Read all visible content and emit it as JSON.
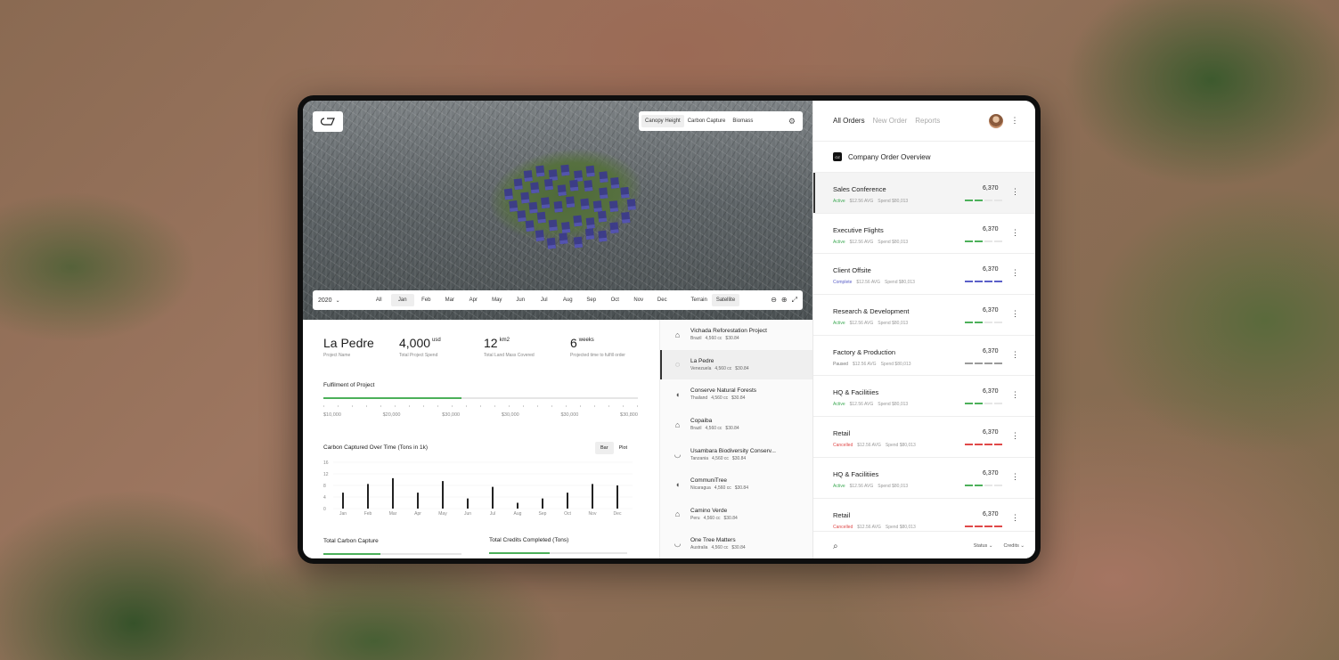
{
  "map": {
    "logo": "OZ",
    "layers": [
      {
        "label": "Canopy Height",
        "active": true
      },
      {
        "label": "Carbon Capture",
        "active": false
      },
      {
        "label": "Biomass",
        "active": false
      }
    ],
    "year": "2020",
    "months": [
      {
        "label": "All",
        "active": false
      },
      {
        "label": "Jan",
        "active": true
      },
      {
        "label": "Feb",
        "active": false
      },
      {
        "label": "Mar",
        "active": false
      },
      {
        "label": "Apr",
        "active": false
      },
      {
        "label": "May",
        "active": false
      },
      {
        "label": "Jun",
        "active": false
      },
      {
        "label": "Jul",
        "active": false
      },
      {
        "label": "Aug",
        "active": false
      },
      {
        "label": "Sep",
        "active": false
      },
      {
        "label": "Oct",
        "active": false
      },
      {
        "label": "Nov",
        "active": false
      },
      {
        "label": "Dec",
        "active": false
      }
    ],
    "views": [
      {
        "label": "Terrain",
        "active": false
      },
      {
        "label": "Satellite",
        "active": true
      }
    ]
  },
  "project": {
    "name": "La Pedre",
    "name_label": "Project Name",
    "spend": "4,000",
    "spend_unit": "usd",
    "spend_label": "Total Project Spend",
    "area": "12",
    "area_unit": "km2",
    "area_label": "Total Land Mass Covered",
    "time": "6",
    "time_unit": "weeks",
    "time_label": "Projected time to fulfill order"
  },
  "fulfillment": {
    "title": "Fulfilment of Project",
    "progress": 0.44,
    "ticks": [
      "$10,000",
      "$20,000",
      "$30,000",
      "$30,000",
      "$30,000",
      "$30,800"
    ]
  },
  "carbon": {
    "title": "Carbon Captured Over Time (Tons in 1k)",
    "toggle": [
      {
        "label": "Bar",
        "active": true
      },
      {
        "label": "Plot",
        "active": false
      }
    ]
  },
  "chart_data": {
    "type": "bar",
    "title": "Carbon Captured Over Time (Tons in 1k)",
    "categories": [
      "Jan",
      "Feb",
      "Mar",
      "Apr",
      "May",
      "Jun",
      "Jul",
      "Aug",
      "Sep",
      "Oct",
      "Nov",
      "Dec"
    ],
    "values": [
      5.5,
      8.5,
      10.5,
      5.5,
      9.5,
      3.5,
      7.5,
      2,
      3.5,
      5.5,
      8.5,
      8
    ],
    "yticks": [
      0,
      4,
      8,
      12,
      16
    ],
    "ylim": [
      0,
      16
    ]
  },
  "totals": {
    "carbon_title": "Total Carbon Capture",
    "carbon_progress": 0.41,
    "credits_title": "Total Credits Completed (Tons)",
    "credits_progress": 0.44
  },
  "projects": [
    {
      "name": "Vichada Reforestation Project",
      "country": "Brazil",
      "cc": "4,560 cc",
      "price": "$30.84",
      "active": false
    },
    {
      "name": "La Pedre",
      "country": "Venezuela",
      "cc": "4,560 cc",
      "price": "$30.84",
      "active": true
    },
    {
      "name": "Conserve Natural Forests",
      "country": "Thailand",
      "cc": "4,560 cc",
      "price": "$30.84",
      "active": false
    },
    {
      "name": "Copaiba",
      "country": "Brazil",
      "cc": "4,560 cc",
      "price": "$30.84",
      "active": false
    },
    {
      "name": "Usambara Biodiversity Conserv...",
      "country": "Tanzania",
      "cc": "4,560 cc",
      "price": "$30.84",
      "active": false
    },
    {
      "name": "CommuniTree",
      "country": "Nicaragua",
      "cc": "4,560 cc",
      "price": "$30.84",
      "active": false
    },
    {
      "name": "Camino Verde",
      "country": "Peru",
      "cc": "4,560 cc",
      "price": "$30.84",
      "active": false
    },
    {
      "name": "One Tree Matters",
      "country": "Australia",
      "cc": "4,560 cc",
      "price": "$30.84",
      "active": false
    }
  ],
  "orders_panel": {
    "tabs": [
      {
        "label": "All Orders",
        "active": true
      },
      {
        "label": "New Order",
        "active": false
      },
      {
        "label": "Reports",
        "active": false
      }
    ],
    "company_title": "Company Order Overview",
    "footer": {
      "status": "Status",
      "credits": "Credits"
    }
  },
  "orders": [
    {
      "name": "Sales Conference",
      "status": "Active",
      "status_color": "#3faa55",
      "avg": "$12.56 AVG",
      "spend": "Spend $80,013",
      "value": "6,370",
      "segments": 2,
      "bar_color": "#4cb05a",
      "active": true
    },
    {
      "name": "Executive Flights",
      "status": "Active",
      "status_color": "#3faa55",
      "avg": "$12.56 AVG",
      "spend": "Spend $80,013",
      "value": "6,370",
      "segments": 2,
      "bar_color": "#4cb05a",
      "active": false
    },
    {
      "name": "Client Offsite",
      "status": "Complete",
      "status_color": "#5a5fc8",
      "avg": "$12.56 AVG",
      "spend": "Spend $80,013",
      "value": "6,370",
      "segments": 4,
      "bar_color": "#5a5fc8",
      "active": false
    },
    {
      "name": "Research & Development",
      "status": "Active",
      "status_color": "#3faa55",
      "avg": "$12.56 AVG",
      "spend": "Spend $80,013",
      "value": "6,370",
      "segments": 2,
      "bar_color": "#4cb05a",
      "active": false
    },
    {
      "name": "Factory & Production",
      "status": "Paused",
      "status_color": "#777777",
      "avg": "$12.56 AVG",
      "spend": "Spend $80,013",
      "value": "6,370",
      "segments": 4,
      "bar_color": "#9a9a9a",
      "active": false
    },
    {
      "name": "HQ & Facilitiies",
      "status": "Active",
      "status_color": "#3faa55",
      "avg": "$12.56 AVG",
      "spend": "Spend $80,013",
      "value": "6,370",
      "segments": 2,
      "bar_color": "#4cb05a",
      "active": false
    },
    {
      "name": "Retail",
      "status": "Cancelled",
      "status_color": "#e04848",
      "avg": "$12.56 AVG",
      "spend": "Spend $80,013",
      "value": "6,370",
      "segments": 4,
      "bar_color": "#e04848",
      "active": false
    },
    {
      "name": "HQ & Facilitiies",
      "status": "Active",
      "status_color": "#3faa55",
      "avg": "$12.56 AVG",
      "spend": "Spend $80,013",
      "value": "6,370",
      "segments": 2,
      "bar_color": "#4cb05a",
      "active": false
    },
    {
      "name": "Retail",
      "status": "Cancelled",
      "status_color": "#e04848",
      "avg": "$12.56 AVG",
      "spend": "Spend $80,013",
      "value": "6,370",
      "segments": 4,
      "bar_color": "#e04848",
      "active": false
    }
  ]
}
